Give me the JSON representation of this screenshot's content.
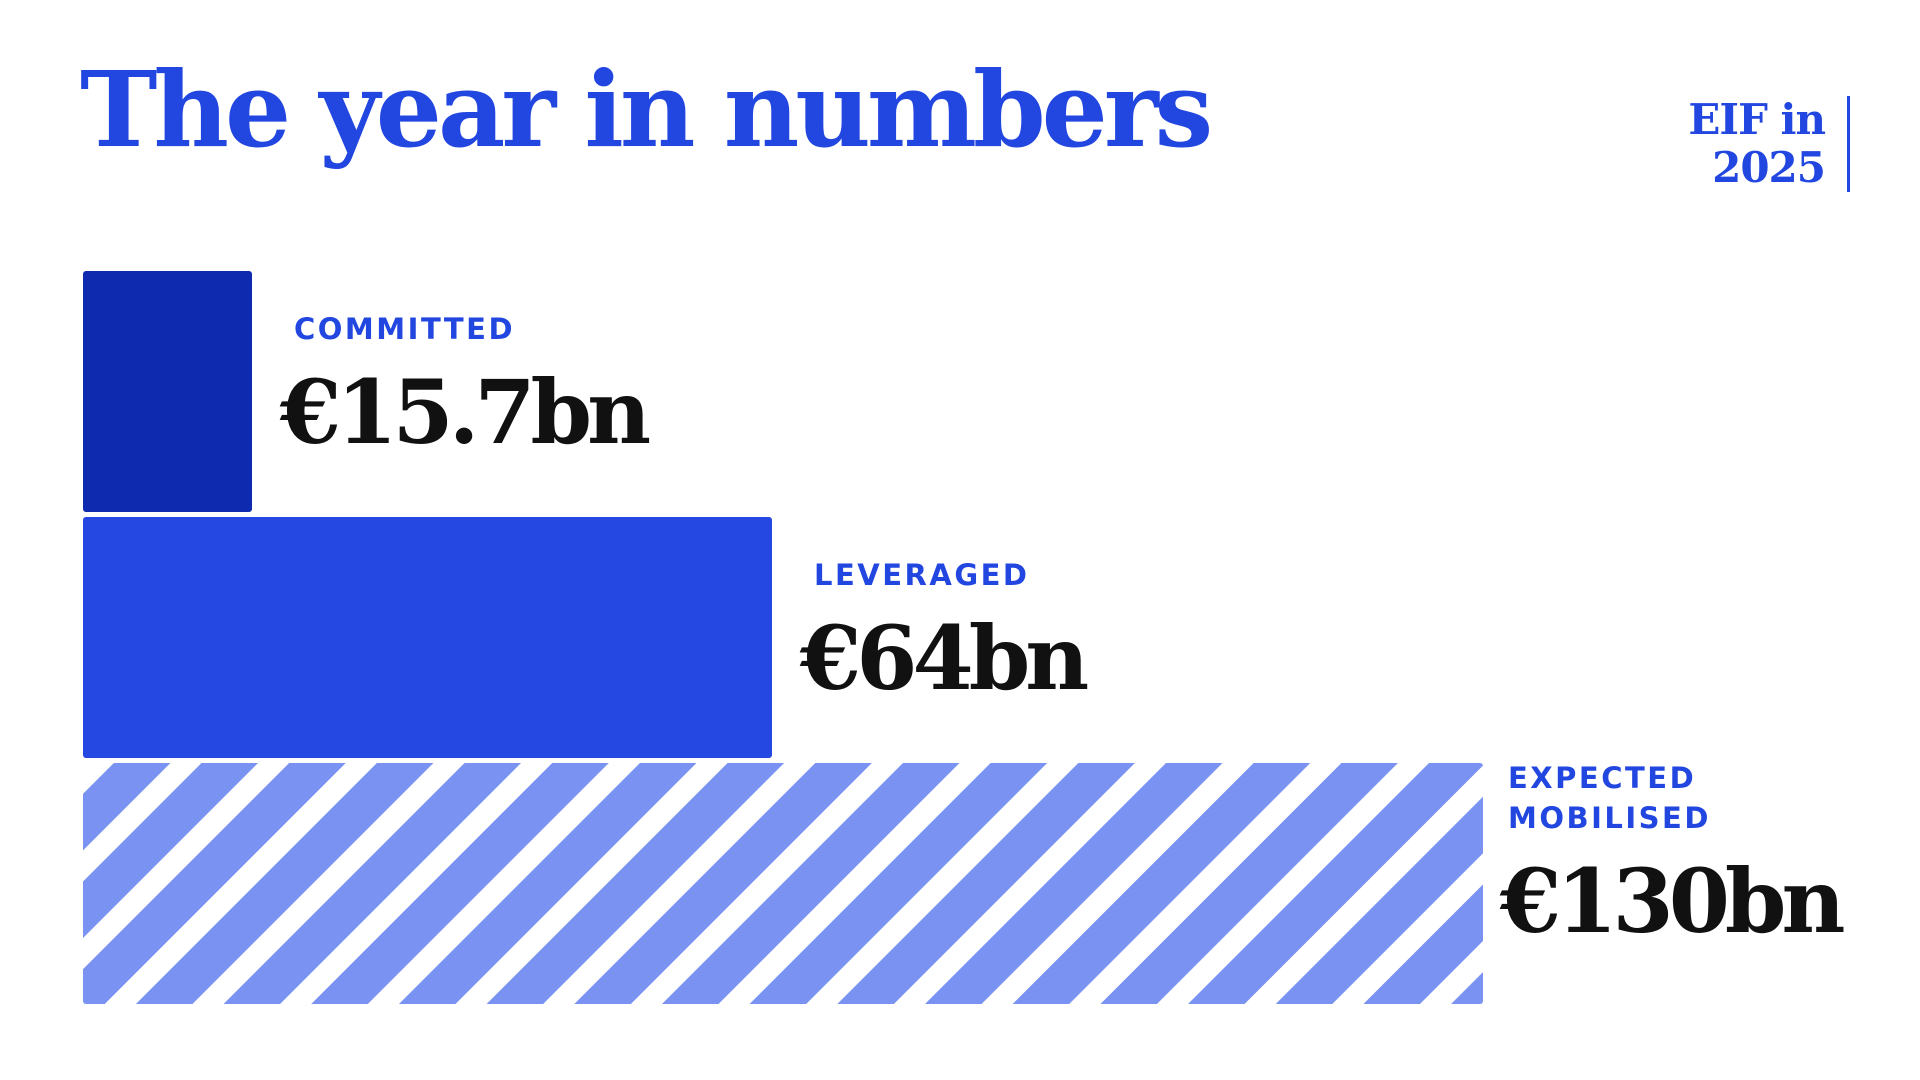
{
  "header": {
    "title": "The year in numbers",
    "tag_line1": "EIF in",
    "tag_line2": "2025"
  },
  "colors": {
    "accent": "#2246e0",
    "committed": "#0e2bb0",
    "leveraged": "#2547e2",
    "hatch": "#7a93f3",
    "value_text": "#111111"
  },
  "chart_data": {
    "type": "bar",
    "orientation": "horizontal",
    "categories": [
      [
        "COMMITTED"
      ],
      [
        "LEVERAGED"
      ],
      [
        "EXPECTED",
        "MOBILISED"
      ]
    ],
    "values": [
      15.7,
      64,
      130
    ],
    "value_labels": [
      "€15.7bn",
      "€64bn",
      "€130bn"
    ],
    "unit": "€bn",
    "patterns": [
      "solid",
      "solid",
      "diagonal-stripes"
    ]
  }
}
